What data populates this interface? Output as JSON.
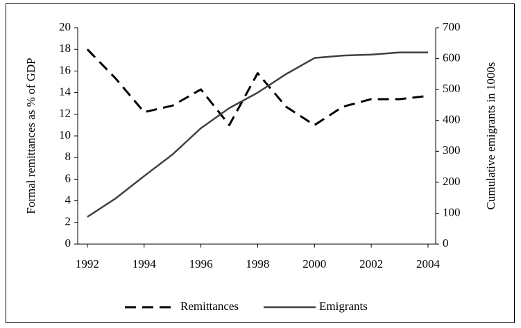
{
  "chart_data": {
    "type": "line",
    "x": [
      1992,
      1993,
      1994,
      1995,
      1996,
      1997,
      1998,
      1999,
      2000,
      2001,
      2002,
      2003,
      2004
    ],
    "xlim": [
      1991.66,
      2004.27
    ],
    "xticks": [
      1992,
      1994,
      1996,
      1998,
      2000,
      2002,
      2004
    ],
    "ylim": [
      0,
      20
    ],
    "yticks": [
      0,
      2,
      4,
      6,
      8,
      10,
      12,
      14,
      16,
      18,
      20
    ],
    "y2lim": [
      0,
      700
    ],
    "y2ticks": [
      0,
      100,
      200,
      300,
      400,
      500,
      600,
      700
    ],
    "ylabel": "Formal remittances as % of GDP",
    "y2label": "Cumulative emigrants in 1000s",
    "legend": "bottom",
    "series": [
      {
        "name": "Remittances",
        "color": "#000000",
        "dash": true,
        "values": [
          18,
          15.3,
          12.2,
          12.8,
          14.3,
          11.0,
          15.8,
          12.7,
          11.0,
          12.7,
          13.4,
          13.4,
          13.7
        ]
      },
      {
        "name": "Emigrants",
        "color": "#404040",
        "axis": "y2",
        "dash": false,
        "values": [
          88,
          148,
          220,
          290,
          375,
          440,
          490,
          550,
          602,
          610,
          613,
          620,
          620
        ]
      }
    ]
  }
}
